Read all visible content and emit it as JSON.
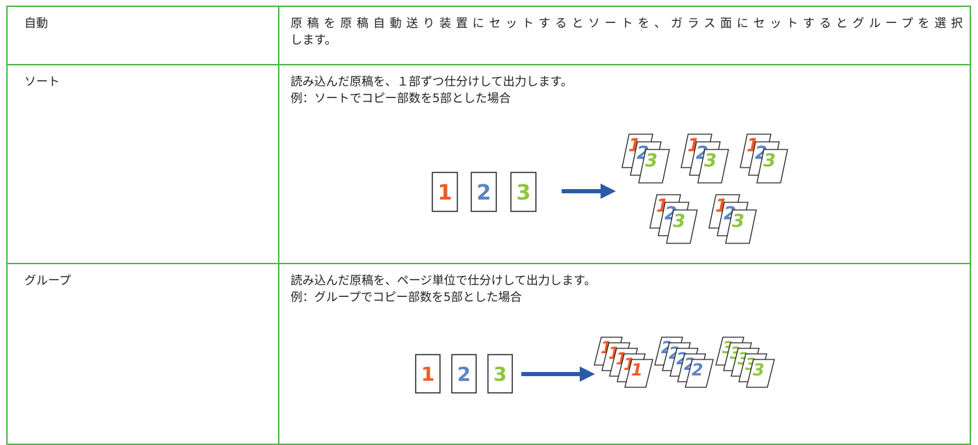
{
  "table": {
    "rows": [
      {
        "label": "自動",
        "lines": [
          "原稿を原稿自動送り装置にセットするとソートを、ガラス面にセットするとグループを選択",
          "します。"
        ]
      },
      {
        "label": "ソート",
        "lines": [
          "読み込んだ原稿を、１部ずつ仕分けして出力します。",
          "例：ソートでコピー部数を5部とした場合"
        ]
      },
      {
        "label": "グループ",
        "lines": [
          "読み込んだ原稿を、ページ単位で仕分けして出力します。",
          "例：グループでコピー部数を5部とした場合"
        ]
      }
    ]
  },
  "figure_digits": [
    "1",
    "2",
    "3"
  ]
}
